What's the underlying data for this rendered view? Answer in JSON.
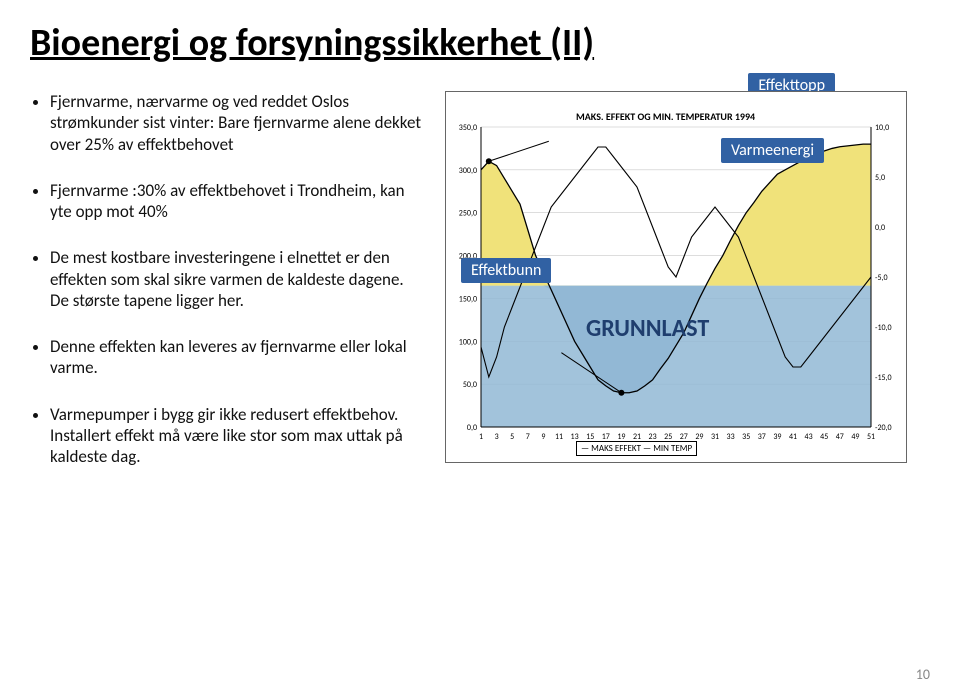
{
  "title": "Bioenergi og forsyningssikkerhet (II)",
  "bullets": [
    "Fjernvarme, nærvarme og ved reddet Oslos strømkunder sist vinter: Bare fjernvarme alene dekket over 25% av effektbehovet",
    "Fjernvarme :30% av effektbehovet i Trondheim, kan yte opp mot 40%",
    "De mest kostbare investeringene i elnettet er den effekten som skal sikre varmen de kaldeste dagene.\nDe største tapene ligger her.",
    "Denne effekten kan leveres av fjernvarme eller lokal varme.",
    "Varmepumper i bygg gir ikke redusert effektbehov. Installert effekt må være like stor som max uttak på kaldeste dag."
  ],
  "labels": {
    "effekttopp": "Effekttopp",
    "varmeenergi": "Varmeenergi",
    "effektbunn": "Effektbunn",
    "grunnlast": "GRUNNLAST"
  },
  "chart": {
    "title_text": "MAKS. EFFEKT OG MIN. TEMPERATUR 1994",
    "legend_text": "— MAKS EFFEKT  — MIN TEMP",
    "colors": {
      "upper_area": "#f0e27a",
      "lower_area": "#8fb8d8",
      "baseline_band": "#92b8d5",
      "line": "#000000",
      "grid": "#bbbbbb",
      "label_bg": "#3161a3",
      "label_text": "#ffffff",
      "grunnlast_text": "#1f3e6e"
    },
    "left_axis": {
      "min": 0,
      "max": 350,
      "step": 50
    },
    "right_axis": {
      "min": -20,
      "max": 10,
      "step": 5
    },
    "x_ticks": [
      1,
      3,
      5,
      7,
      9,
      11,
      13,
      15,
      17,
      19,
      21,
      23,
      25,
      27,
      29,
      31,
      33,
      35,
      37,
      39,
      41,
      43,
      45,
      47,
      49,
      51
    ],
    "maks_effekt": [
      300,
      310,
      305,
      290,
      275,
      260,
      230,
      200,
      180,
      160,
      140,
      120,
      100,
      85,
      70,
      55,
      48,
      42,
      40,
      40,
      42,
      48,
      55,
      68,
      80,
      95,
      110,
      130,
      150,
      168,
      185,
      200,
      218,
      235,
      250,
      262,
      275,
      285,
      295,
      300,
      305,
      310,
      315,
      320,
      322,
      325,
      327,
      328,
      329,
      330,
      330
    ],
    "min_temp": [
      -12,
      -15,
      -13,
      -10,
      -8,
      -6,
      -4,
      -2,
      0,
      2,
      3,
      4,
      5,
      6,
      7,
      8,
      8,
      7,
      6,
      5,
      4,
      2,
      0,
      -2,
      -4,
      -5,
      -3,
      -1,
      0,
      1,
      2,
      1,
      0,
      -1,
      -3,
      -5,
      -7,
      -9,
      -11,
      -13,
      -14,
      -14,
      -13,
      -12,
      -11,
      -10,
      -9,
      -8,
      -7,
      -6,
      -5
    ],
    "grunnlast_level": 165
  },
  "page_number": "10"
}
